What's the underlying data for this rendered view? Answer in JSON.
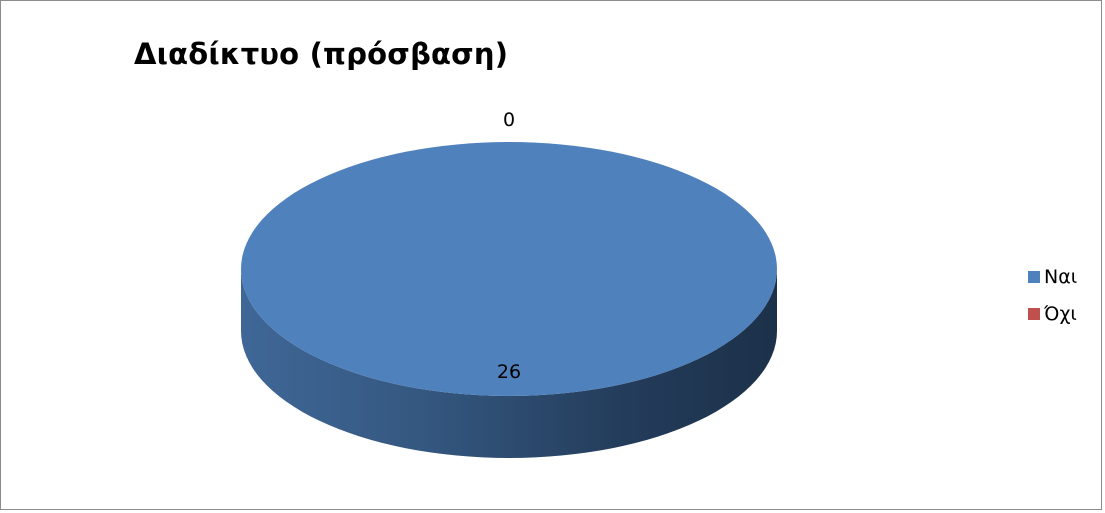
{
  "chart_data": {
    "type": "pie",
    "title": "Διαδίκτυο (πρόσβαση)",
    "categories": [
      "Ναι",
      "Όχι"
    ],
    "values": [
      26,
      0
    ],
    "data_labels": [
      "26",
      "0"
    ],
    "colors": [
      "#4f81bd",
      "#c0504d"
    ],
    "style": "3d",
    "legend": "right"
  }
}
